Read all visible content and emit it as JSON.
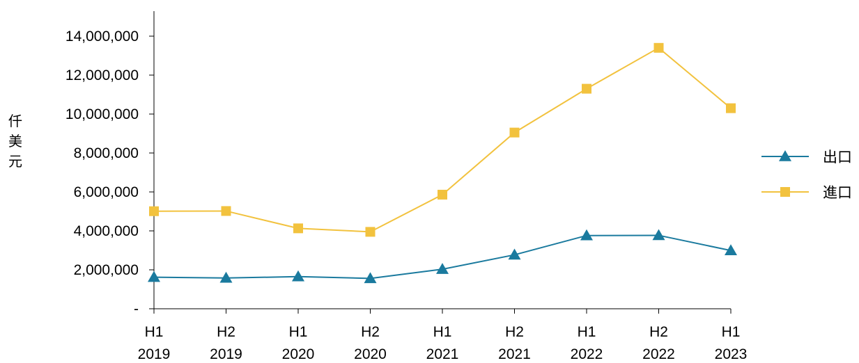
{
  "chart_data": {
    "type": "line",
    "ylabel": "仟美元",
    "categories": [
      [
        "H1",
        "2019"
      ],
      [
        "H2",
        "2019"
      ],
      [
        "H1",
        "2020"
      ],
      [
        "H2",
        "2020"
      ],
      [
        "H1",
        "2021"
      ],
      [
        "H2",
        "2021"
      ],
      [
        "H1",
        "2022"
      ],
      [
        "H2",
        "2022"
      ],
      [
        "H1",
        "2023"
      ]
    ],
    "ylim": [
      0,
      14000000
    ],
    "yticks": [
      0,
      2000000,
      4000000,
      6000000,
      8000000,
      10000000,
      12000000,
      14000000
    ],
    "ytick_labels": [
      "-",
      "2,000,000",
      "4,000,000",
      "6,000,000",
      "8,000,000",
      "10,000,000",
      "12,000,000",
      "14,000,000"
    ],
    "series": [
      {
        "name": "出口",
        "color": "#1a7a9e",
        "marker": "triangle",
        "values": [
          1620000,
          1580000,
          1650000,
          1560000,
          2030000,
          2770000,
          3760000,
          3770000,
          2990000
        ]
      },
      {
        "name": "進口",
        "color": "#f2c23e",
        "marker": "square",
        "values": [
          5010000,
          5020000,
          4130000,
          3950000,
          5860000,
          9050000,
          11300000,
          13400000,
          10300000
        ]
      }
    ],
    "legend_position": "right",
    "grid": false
  }
}
